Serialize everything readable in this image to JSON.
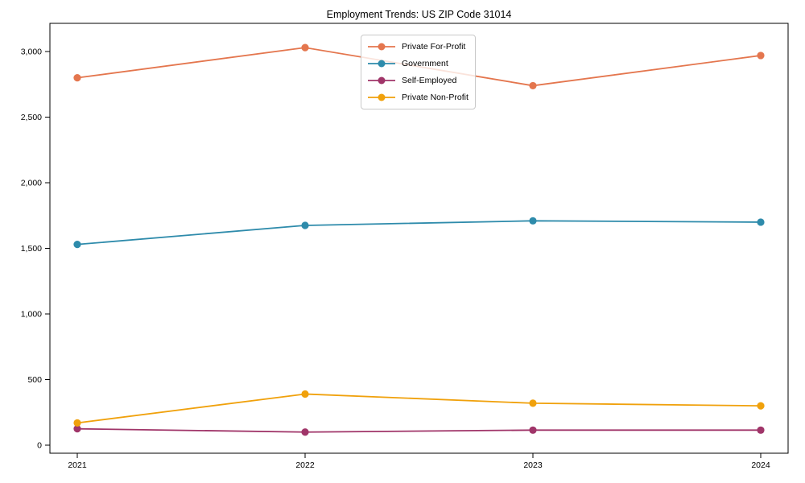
{
  "chart_data": {
    "type": "line",
    "title": "Employment Trends: US ZIP Code 31014",
    "x": [
      "2021",
      "2022",
      "2023",
      "2024"
    ],
    "series": [
      {
        "name": "Private For-Profit",
        "color": "#e4764e",
        "values": [
          2800,
          3030,
          2740,
          2970
        ]
      },
      {
        "name": "Government",
        "color": "#2e8bab",
        "values": [
          1530,
          1675,
          1710,
          1700
        ]
      },
      {
        "name": "Self-Employed",
        "color": "#a03569",
        "values": [
          125,
          100,
          115,
          115
        ]
      },
      {
        "name": "Private Non-Profit",
        "color": "#f0a10c",
        "values": [
          170,
          390,
          320,
          300
        ]
      }
    ],
    "ylim": [
      -61,
      3215
    ],
    "yticks": [
      0,
      500,
      1000,
      1500,
      2000,
      2500,
      3000
    ],
    "ytick_labels": [
      "0",
      "500",
      "1,000",
      "1,500",
      "2,000",
      "2,500",
      "3,000"
    ],
    "grid": false,
    "legend_position": "upper center",
    "axis_color": "#000000",
    "background_color": "#ffffff",
    "marker": "circle",
    "line_width": 1.8,
    "marker_radius": 4.6
  }
}
